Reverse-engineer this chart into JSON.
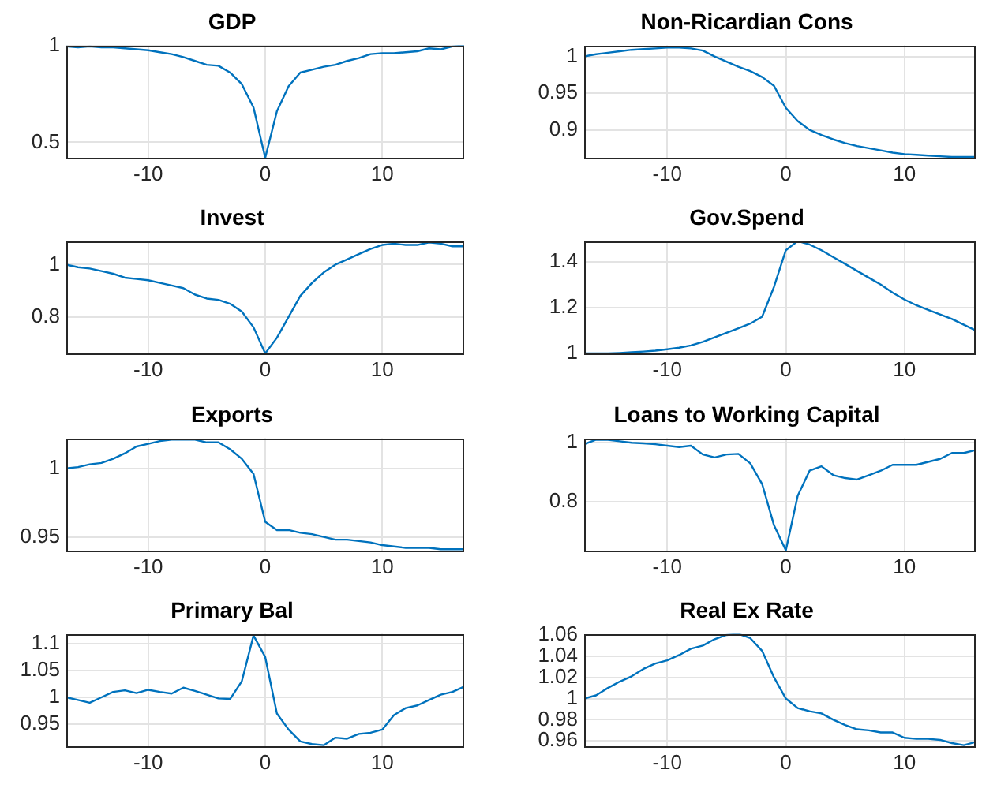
{
  "chart_data": [
    {
      "type": "line",
      "title": "GDP",
      "x": [
        -17,
        -16,
        -15,
        -14,
        -13,
        -12,
        -11,
        -10,
        -9,
        -8,
        -7,
        -6,
        -5,
        -4,
        -3,
        -2,
        -1,
        0,
        1,
        2,
        3,
        4,
        5,
        6,
        7,
        8,
        9,
        10,
        11,
        12,
        13,
        14,
        15,
        16,
        17
      ],
      "values": [
        0.995,
        0.99,
        0.995,
        0.99,
        0.99,
        0.985,
        0.98,
        0.975,
        0.965,
        0.955,
        0.94,
        0.92,
        0.9,
        0.895,
        0.86,
        0.8,
        0.68,
        0.42,
        0.66,
        0.79,
        0.86,
        0.875,
        0.89,
        0.9,
        0.92,
        0.935,
        0.955,
        0.96,
        0.96,
        0.965,
        0.97,
        0.985,
        0.98,
        0.995,
        1.0
      ],
      "color": "#0072bd",
      "xlim": [
        -17,
        17
      ],
      "xticks": [
        -10,
        0,
        10
      ],
      "ylim": [
        0.42,
        1
      ],
      "yticks": [
        0.5,
        1
      ],
      "grid": true
    },
    {
      "type": "line",
      "title": "Non-Ricardian Cons",
      "x": [
        -17,
        -16,
        -15,
        -14,
        -13,
        -12,
        -11,
        -10,
        -9,
        -8,
        -7,
        -6,
        -5,
        -4,
        -3,
        -2,
        -1,
        0,
        1,
        2,
        3,
        4,
        5,
        6,
        7,
        8,
        9,
        10,
        11,
        12,
        13,
        14,
        15,
        16
      ],
      "values": [
        1.0,
        1.003,
        1.005,
        1.007,
        1.009,
        1.01,
        1.011,
        1.012,
        1.012,
        1.011,
        1.008,
        1.0,
        0.993,
        0.986,
        0.98,
        0.972,
        0.96,
        0.93,
        0.912,
        0.9,
        0.893,
        0.887,
        0.882,
        0.878,
        0.875,
        0.872,
        0.869,
        0.867,
        0.866,
        0.865,
        0.864,
        0.863,
        0.863,
        0.863
      ],
      "color": "#0072bd",
      "xlim": [
        -17,
        16
      ],
      "xticks": [
        -10,
        0,
        10
      ],
      "ylim": [
        0.862,
        1.015
      ],
      "yticks": [
        0.9,
        0.95,
        1
      ],
      "grid": true
    },
    {
      "type": "line",
      "title": "Invest",
      "x": [
        -17,
        -16,
        -15,
        -14,
        -13,
        -12,
        -11,
        -10,
        -9,
        -8,
        -7,
        -6,
        -5,
        -4,
        -3,
        -2,
        -1,
        0,
        1,
        2,
        3,
        4,
        5,
        6,
        7,
        8,
        9,
        10,
        11,
        12,
        13,
        14,
        15,
        16,
        17
      ],
      "values": [
        1.0,
        0.99,
        0.985,
        0.975,
        0.965,
        0.95,
        0.945,
        0.94,
        0.93,
        0.92,
        0.91,
        0.885,
        0.87,
        0.865,
        0.85,
        0.82,
        0.76,
        0.66,
        0.72,
        0.8,
        0.88,
        0.93,
        0.97,
        1.0,
        1.02,
        1.04,
        1.06,
        1.075,
        1.08,
        1.075,
        1.075,
        1.085,
        1.08,
        1.07,
        1.07
      ],
      "color": "#0072bd",
      "xlim": [
        -17,
        17
      ],
      "xticks": [
        -10,
        0,
        10
      ],
      "ylim": [
        0.66,
        1.09
      ],
      "yticks": [
        0.8,
        1
      ],
      "grid": true
    },
    {
      "type": "line",
      "title": "Gov.Spend",
      "x": [
        -17,
        -16,
        -15,
        -14,
        -13,
        -12,
        -11,
        -10,
        -9,
        -8,
        -7,
        -6,
        -5,
        -4,
        -3,
        -2,
        -1,
        0,
        1,
        2,
        3,
        4,
        5,
        6,
        7,
        8,
        9,
        10,
        11,
        12,
        13,
        14,
        15,
        16
      ],
      "values": [
        1.0,
        1.0,
        1.0,
        1.002,
        1.005,
        1.008,
        1.012,
        1.018,
        1.025,
        1.035,
        1.05,
        1.07,
        1.09,
        1.11,
        1.13,
        1.16,
        1.29,
        1.45,
        1.49,
        1.475,
        1.45,
        1.42,
        1.39,
        1.36,
        1.33,
        1.3,
        1.265,
        1.235,
        1.21,
        1.19,
        1.17,
        1.15,
        1.125,
        1.1
      ],
      "color": "#0072bd",
      "xlim": [
        -17,
        16
      ],
      "xticks": [
        -10,
        0,
        10
      ],
      "ylim": [
        1,
        1.49
      ],
      "yticks": [
        1,
        1.2,
        1.4
      ],
      "grid": true
    },
    {
      "type": "line",
      "title": "Exports",
      "x": [
        -17,
        -16,
        -15,
        -14,
        -13,
        -12,
        -11,
        -10,
        -9,
        -8,
        -7,
        -6,
        -5,
        -4,
        -3,
        -2,
        -1,
        0,
        1,
        2,
        3,
        4,
        5,
        6,
        7,
        8,
        9,
        10,
        11,
        12,
        13,
        14,
        15,
        16,
        17
      ],
      "values": [
        1.0,
        1.001,
        1.003,
        1.004,
        1.007,
        1.011,
        1.016,
        1.018,
        1.02,
        1.021,
        1.021,
        1.021,
        1.019,
        1.019,
        1.014,
        1.007,
        0.996,
        0.961,
        0.955,
        0.955,
        0.953,
        0.952,
        0.95,
        0.948,
        0.948,
        0.947,
        0.946,
        0.944,
        0.943,
        0.942,
        0.942,
        0.942,
        0.941,
        0.941,
        0.941
      ],
      "color": "#0072bd",
      "xlim": [
        -17,
        17
      ],
      "xticks": [
        -10,
        0,
        10
      ],
      "ylim": [
        0.94,
        1.022
      ],
      "yticks": [
        0.95,
        1
      ],
      "grid": true
    },
    {
      "type": "line",
      "title": "Loans to Working Capital",
      "x": [
        -17,
        -16,
        -15,
        -14,
        -13,
        -12,
        -11,
        -10,
        -9,
        -8,
        -7,
        -6,
        -5,
        -4,
        -3,
        -2,
        -1,
        0,
        1,
        2,
        3,
        4,
        5,
        6,
        7,
        8,
        9,
        10,
        11,
        12,
        13,
        14,
        15,
        16
      ],
      "values": [
        0.995,
        1.01,
        1.01,
        1.005,
        1.0,
        0.998,
        0.995,
        0.99,
        0.985,
        0.99,
        0.96,
        0.95,
        0.96,
        0.962,
        0.93,
        0.86,
        0.72,
        0.635,
        0.82,
        0.905,
        0.92,
        0.89,
        0.88,
        0.875,
        0.89,
        0.905,
        0.925,
        0.925,
        0.925,
        0.935,
        0.945,
        0.965,
        0.965,
        0.975
      ],
      "color": "#0072bd",
      "xlim": [
        -17,
        16
      ],
      "xticks": [
        -10,
        0,
        10
      ],
      "ylim": [
        0.634,
        1.015
      ],
      "yticks": [
        0.8,
        1
      ],
      "grid": true
    },
    {
      "type": "line",
      "title": "Primary Bal",
      "x": [
        -17,
        -16,
        -15,
        -14,
        -13,
        -12,
        -11,
        -10,
        -9,
        -8,
        -7,
        -6,
        -5,
        -4,
        -3,
        -2,
        -1,
        0,
        1,
        2,
        3,
        4,
        5,
        6,
        7,
        8,
        9,
        10,
        11,
        12,
        13,
        14,
        15,
        16,
        17
      ],
      "values": [
        1.0,
        0.995,
        0.99,
        1.0,
        1.01,
        1.013,
        1.008,
        1.014,
        1.01,
        1.007,
        1.018,
        1.012,
        1.005,
        0.998,
        0.997,
        1.03,
        1.115,
        1.075,
        0.97,
        0.94,
        0.918,
        0.913,
        0.911,
        0.925,
        0.923,
        0.932,
        0.934,
        0.94,
        0.967,
        0.98,
        0.985,
        0.995,
        1.005,
        1.01,
        1.02
      ],
      "color": "#0072bd",
      "xlim": [
        -17,
        17
      ],
      "xticks": [
        -10,
        0,
        10
      ],
      "ylim": [
        0.909,
        1.118
      ],
      "yticks": [
        0.95,
        1,
        1.05,
        1.1
      ],
      "grid": true
    },
    {
      "type": "line",
      "title": "Real Ex Rate",
      "x": [
        -17,
        -16,
        -15,
        -14,
        -13,
        -12,
        -11,
        -10,
        -9,
        -8,
        -7,
        -6,
        -5,
        -4,
        -3,
        -2,
        -1,
        0,
        1,
        2,
        3,
        4,
        5,
        6,
        7,
        8,
        9,
        10,
        11,
        12,
        13,
        14,
        15,
        16
      ],
      "values": [
        1.0,
        1.003,
        1.01,
        1.016,
        1.021,
        1.028,
        1.033,
        1.036,
        1.041,
        1.047,
        1.05,
        1.056,
        1.06,
        1.061,
        1.057,
        1.045,
        1.02,
        1.0,
        0.991,
        0.988,
        0.986,
        0.98,
        0.975,
        0.971,
        0.97,
        0.968,
        0.968,
        0.963,
        0.962,
        0.962,
        0.961,
        0.958,
        0.956,
        0.959
      ],
      "color": "#0072bd",
      "xlim": [
        -17,
        16
      ],
      "xticks": [
        -10,
        0,
        10
      ],
      "ylim": [
        0.955,
        1.061
      ],
      "yticks": [
        0.96,
        0.98,
        1,
        1.02,
        1.04,
        1.06
      ],
      "grid": true
    }
  ]
}
